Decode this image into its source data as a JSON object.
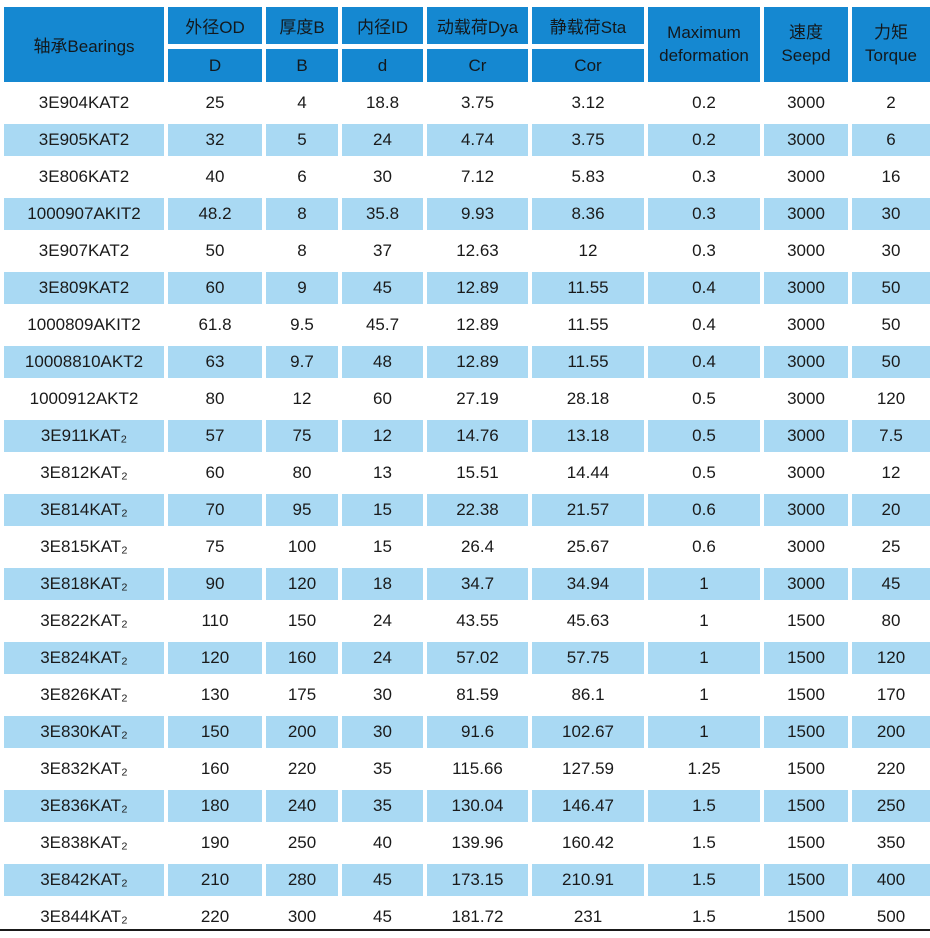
{
  "table": {
    "header": {
      "bearings": "轴承Bearings",
      "cols": [
        {
          "top": "外径OD",
          "bottom": "D"
        },
        {
          "top": "厚度B",
          "bottom": "B"
        },
        {
          "top": "内径ID",
          "bottom": "d"
        },
        {
          "top": "动载荷Dya",
          "bottom": "Cr"
        },
        {
          "top": "静载荷Sta",
          "bottom": "Cor"
        }
      ],
      "max_deformation": {
        "line1": "Maximum",
        "line2": "deformation"
      },
      "speed": {
        "line1": "速度",
        "line2": "Seepd"
      },
      "torque": {
        "line1": "力矩",
        "line2": "Torque"
      }
    },
    "rows": [
      [
        "3E904KAT2",
        "25",
        "4",
        "18.8",
        "3.75",
        "3.12",
        "0.2",
        "3000",
        "2"
      ],
      [
        "3E905KAT2",
        "32",
        "5",
        "24",
        "4.74",
        "3.75",
        "0.2",
        "3000",
        "6"
      ],
      [
        "3E806KAT2",
        "40",
        "6",
        "30",
        "7.12",
        "5.83",
        "0.3",
        "3000",
        "16"
      ],
      [
        "1000907AKIT2",
        "48.2",
        "8",
        "35.8",
        "9.93",
        "8.36",
        "0.3",
        "3000",
        "30"
      ],
      [
        "3E907KAT2",
        "50",
        "8",
        "37",
        "12.63",
        "12",
        "0.3",
        "3000",
        "30"
      ],
      [
        "3E809KAT2",
        "60",
        "9",
        "45",
        "12.89",
        "11.55",
        "0.4",
        "3000",
        "50"
      ],
      [
        "1000809AKIT2",
        "61.8",
        "9.5",
        "45.7",
        "12.89",
        "11.55",
        "0.4",
        "3000",
        "50"
      ],
      [
        "10008810AKT2",
        "63",
        "9.7",
        "48",
        "12.89",
        "11.55",
        "0.4",
        "3000",
        "50"
      ],
      [
        "1000912AKT2",
        "80",
        "12",
        "60",
        "27.19",
        "28.18",
        "0.5",
        "3000",
        "120"
      ],
      [
        "3E911KAT₂",
        "57",
        "75",
        "12",
        "14.76",
        "13.18",
        "0.5",
        "3000",
        "7.5"
      ],
      [
        "3E812KAT₂",
        "60",
        "80",
        "13",
        "15.51",
        "14.44",
        "0.5",
        "3000",
        "12"
      ],
      [
        "3E814KAT₂",
        "70",
        "95",
        "15",
        "22.38",
        "21.57",
        "0.6",
        "3000",
        "20"
      ],
      [
        "3E815KAT₂",
        "75",
        "100",
        "15",
        "26.4",
        "25.67",
        "0.6",
        "3000",
        "25"
      ],
      [
        "3E818KAT₂",
        "90",
        "120",
        "18",
        "34.7",
        "34.94",
        "1",
        "3000",
        "45"
      ],
      [
        "3E822KAT₂",
        "110",
        "150",
        "24",
        "43.55",
        "45.63",
        "1",
        "1500",
        "80"
      ],
      [
        "3E824KAT₂",
        "120",
        "160",
        "24",
        "57.02",
        "57.75",
        "1",
        "1500",
        "120"
      ],
      [
        "3E826KAT₂",
        "130",
        "175",
        "30",
        "81.59",
        "86.1",
        "1",
        "1500",
        "170"
      ],
      [
        "3E830KAT₂",
        "150",
        "200",
        "30",
        "91.6",
        "102.67",
        "1",
        "1500",
        "200"
      ],
      [
        "3E832KAT₂",
        "160",
        "220",
        "35",
        "115.66",
        "127.59",
        "1.25",
        "1500",
        "220"
      ],
      [
        "3E836KAT₂",
        "180",
        "240",
        "35",
        "130.04",
        "146.47",
        "1.5",
        "1500",
        "250"
      ],
      [
        "3E838KAT₂",
        "190",
        "250",
        "40",
        "139.96",
        "160.42",
        "1.5",
        "1500",
        "350"
      ],
      [
        "3E842KAT₂",
        "210",
        "280",
        "45",
        "173.15",
        "210.91",
        "1.5",
        "1500",
        "400"
      ],
      [
        "3E844KAT₂",
        "220",
        "300",
        "45",
        "181.72",
        "231",
        "1.5",
        "1500",
        "500"
      ]
    ]
  },
  "colors": {
    "header_bg": "#1588d1",
    "alt_row_bg": "#a9d9f3",
    "text": "#1a1a1a"
  }
}
